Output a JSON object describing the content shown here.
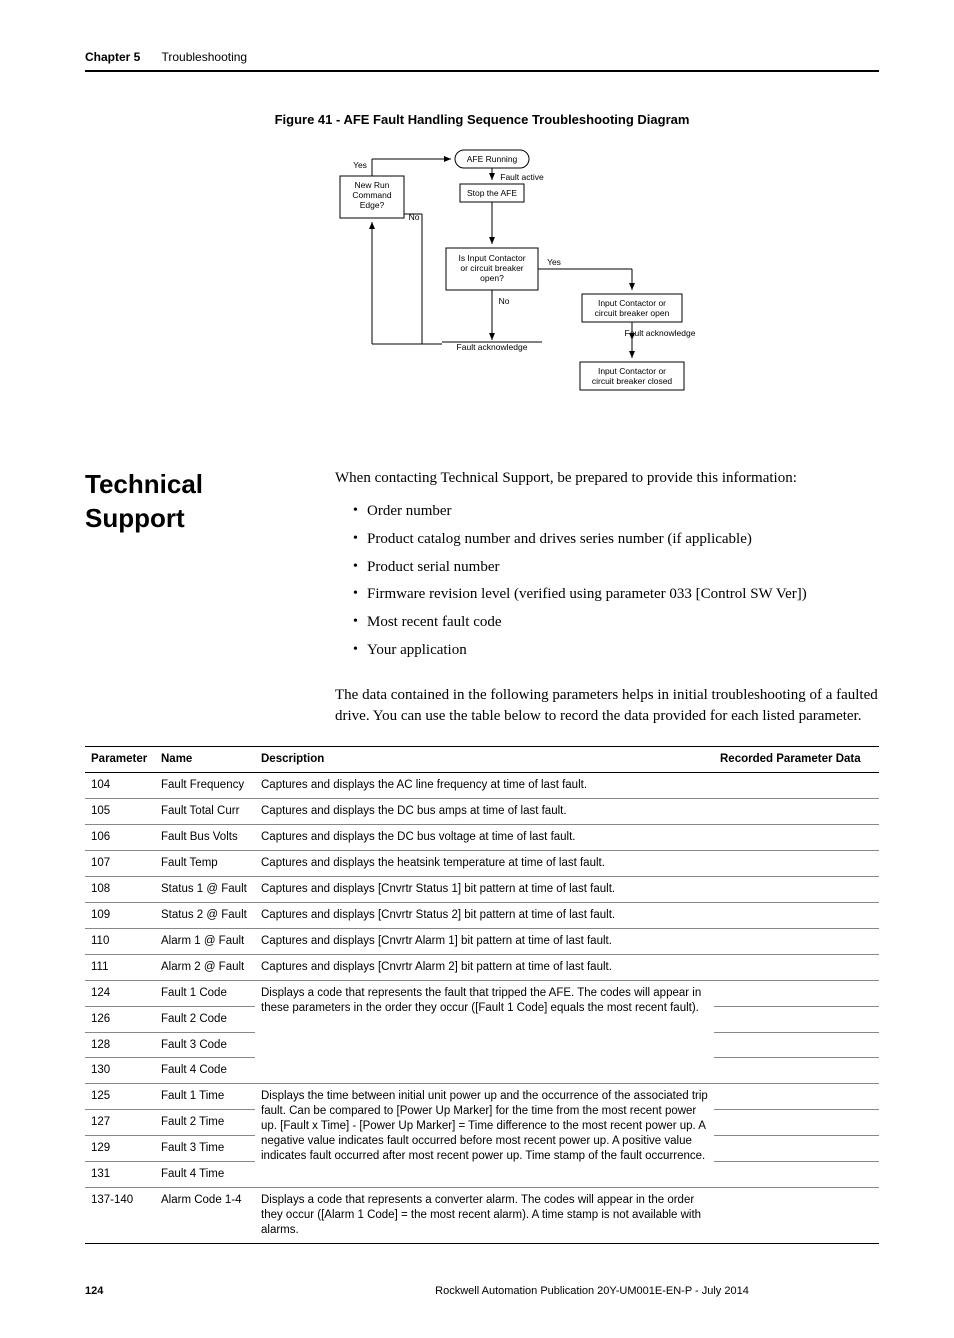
{
  "header": {
    "chapter": "Chapter 5",
    "section": "Troubleshooting"
  },
  "figure": {
    "title": "Figure 41 - AFE Fault Handling Sequence Troubleshooting Diagram",
    "nodes": {
      "afe_running": "AFE Running",
      "fault_active": "Fault active",
      "stop_afe": "Stop the AFE",
      "new_run": "New Run\nCommand\nEdge?",
      "is_input": "Is Input Contactor\nor circuit breaker\nopen?",
      "input_open": "Input Contactor or\ncircuit breaker open",
      "fault_ack_right": "Fault acknowledge",
      "input_closed": "Input Contactor or\ncircuit breaker closed",
      "fault_ack_center": "Fault acknowledge"
    },
    "labels": {
      "yes": "Yes",
      "no": "No"
    },
    "style": {
      "node_fill": "#ffffff",
      "node_stroke": "#000000",
      "text_color": "#000000",
      "line_color": "#000000",
      "font_size_node": 8.5,
      "font_size_label": 8.5
    }
  },
  "section_heading": "Technical Support",
  "body": {
    "intro": "When contacting Technical Support, be prepared to provide this information:",
    "list": [
      "Order number",
      "Product catalog number and drives series number (if applicable)",
      "Product serial number",
      "Firmware revision level (verified using parameter 033 [Control SW Ver])",
      "Most recent fault code",
      "Your application"
    ],
    "para2": "The data contained in the following parameters helps in initial troubleshooting of a faulted drive. You can use the table below to record the data provided for each listed parameter."
  },
  "table": {
    "columns": [
      "Parameter",
      "Name",
      "Description",
      "Recorded Parameter Data"
    ],
    "rows": [
      {
        "param": "104",
        "name": "Fault Frequency",
        "desc": "Captures and displays the AC line frequency at time of last fault.",
        "rec": ""
      },
      {
        "param": "105",
        "name": "Fault Total Curr",
        "desc": "Captures and displays the DC bus amps at time of last fault.",
        "rec": ""
      },
      {
        "param": "106",
        "name": "Fault Bus Volts",
        "desc": "Captures and displays the DC bus voltage at time of last fault.",
        "rec": ""
      },
      {
        "param": "107",
        "name": "Fault Temp",
        "desc": "Captures and displays the heatsink temperature at time of last fault.",
        "rec": ""
      },
      {
        "param": "108",
        "name": "Status 1 @ Fault",
        "desc": "Captures and displays [Cnvrtr Status 1] bit pattern at time of last fault.",
        "rec": ""
      },
      {
        "param": "109",
        "name": "Status 2 @ Fault",
        "desc": "Captures and displays [Cnvrtr Status 2] bit pattern at time of last fault.",
        "rec": ""
      },
      {
        "param": "110",
        "name": "Alarm 1 @ Fault",
        "desc": "Captures and displays [Cnvrtr Alarm 1] bit pattern at time of last fault.",
        "rec": ""
      },
      {
        "param": "111",
        "name": "Alarm 2 @ Fault",
        "desc": "Captures and displays [Cnvrtr Alarm 2] bit pattern at time of last fault.",
        "rec": ""
      }
    ],
    "group1": {
      "desc": "Displays a code that represents the fault that tripped the AFE. The codes will appear in these parameters in the order they occur ([Fault 1 Code] equals the most recent fault).",
      "rows": [
        {
          "param": "124",
          "name": "Fault 1 Code"
        },
        {
          "param": "126",
          "name": "Fault 2 Code"
        },
        {
          "param": "128",
          "name": "Fault 3 Code"
        },
        {
          "param": "130",
          "name": "Fault 4 Code"
        }
      ]
    },
    "group2": {
      "desc": "Displays the time between initial unit power up and the occurrence of the associated trip fault. Can be compared to [Power Up Marker] for the time from the most recent power up. [Fault x Time] - [Power Up Marker] = Time difference to the most recent power up. A negative value indicates fault occurred before most recent power up. A positive value indicates fault occurred after most recent power up. Time stamp of the fault occurrence.",
      "rows": [
        {
          "param": "125",
          "name": "Fault 1 Time"
        },
        {
          "param": "127",
          "name": "Fault 2 Time"
        },
        {
          "param": "129",
          "name": "Fault 3 Time"
        },
        {
          "param": "131",
          "name": "Fault 4 Time"
        }
      ]
    },
    "last": {
      "param": "137-140",
      "name": "Alarm Code 1-4",
      "desc": "Displays a code that represents a converter alarm. The codes will appear in the order they occur ([Alarm 1 Code] = the most recent alarm). A time stamp is not available with alarms.",
      "rec": ""
    }
  },
  "footer": {
    "page": "124",
    "pub": "Rockwell Automation Publication 20Y-UM001E-EN-P - July 2014"
  }
}
